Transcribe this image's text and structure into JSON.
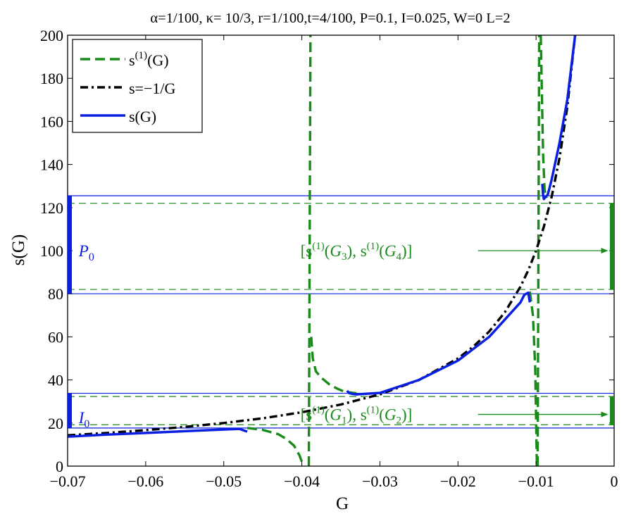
{
  "chart_data": {
    "type": "line",
    "title": "α=1/100, κ= 10/3, r=1/100,t=4/100, P=0.1, I=0.025, W=0 L=2",
    "xlabel": "G",
    "ylabel": "s(G)",
    "xlim": [
      -0.07,
      0
    ],
    "ylim": [
      0,
      200
    ],
    "xticks": [
      -0.07,
      -0.06,
      -0.05,
      -0.04,
      -0.03,
      -0.02,
      -0.01,
      0
    ],
    "xtick_labels": [
      "−0.07",
      "−0.06",
      "−0.05",
      "−0.04",
      "−0.03",
      "−0.02",
      "−0.01",
      "0"
    ],
    "yticks": [
      0,
      20,
      40,
      60,
      80,
      100,
      120,
      140,
      160,
      180,
      200
    ],
    "ytick_labels": [
      "0",
      "20",
      "40",
      "60",
      "80",
      "100",
      "120",
      "140",
      "160",
      "180",
      "200"
    ],
    "grid": false,
    "legend_position": "top-left",
    "legend": [
      {
        "label": "s(1)(G)",
        "label_base": "s",
        "label_sup": "(1)",
        "label_tail": "(G)",
        "color": "#1a8a1a",
        "style": "dashed"
      },
      {
        "label": "s=−1/G",
        "label_base": "s=−1/G",
        "label_sup": "",
        "label_tail": "",
        "color": "#000000",
        "style": "dashdot"
      },
      {
        "label": "s(G)",
        "label_base": "s(G)",
        "label_sup": "",
        "label_tail": "",
        "color": "#0a1fe0",
        "style": "solid"
      }
    ],
    "series": [
      {
        "name": "s(1)(G)",
        "color": "#1a8a1a",
        "style": "dashed",
        "segments": [
          [
            [
              -0.047,
              17.7
            ],
            [
              -0.045,
              16.8
            ],
            [
              -0.043,
              14.8
            ],
            [
              -0.042,
              12.6
            ],
            [
              -0.041,
              9.5
            ],
            [
              -0.0403,
              5.0
            ],
            [
              -0.0398,
              0
            ]
          ],
          [
            [
              -0.0391,
              0
            ],
            [
              -0.0389,
              200
            ]
          ],
          [
            [
              -0.0388,
              60
            ],
            [
              -0.0386,
              50
            ],
            [
              -0.0382,
              44
            ],
            [
              -0.0375,
              41
            ],
            [
              -0.0365,
              38
            ],
            [
              -0.0355,
              36
            ],
            [
              -0.0345,
              34.5
            ],
            [
              -0.033,
              33.8
            ]
          ],
          [
            [
              -0.0108,
              81
            ],
            [
              -0.0104,
              70
            ],
            [
              -0.0101,
              45
            ],
            [
              -0.0099,
              0
            ]
          ],
          [
            [
              -0.0098,
              0
            ],
            [
              -0.0096,
              200
            ]
          ],
          [
            [
              -0.0094,
              200
            ],
            [
              -0.0091,
              145
            ],
            [
              -0.0089,
              128
            ],
            [
              -0.0086,
              124.5
            ]
          ]
        ]
      },
      {
        "name": "s=−1/G",
        "color": "#000000",
        "style": "dashdot",
        "x": [
          -0.07,
          -0.065,
          -0.06,
          -0.055,
          -0.05,
          -0.045,
          -0.04,
          -0.035,
          -0.03,
          -0.025,
          -0.02,
          -0.018,
          -0.016,
          -0.014,
          -0.012,
          -0.011,
          -0.01,
          -0.009,
          -0.008,
          -0.007,
          -0.006,
          -0.005
        ],
        "y": [
          14.3,
          15.4,
          16.7,
          18.2,
          20.0,
          22.2,
          25.0,
          28.6,
          33.3,
          40.0,
          50.0,
          55.6,
          62.5,
          71.4,
          83.3,
          90.9,
          100.0,
          111.1,
          125.0,
          142.9,
          166.7,
          200.0
        ]
      },
      {
        "name": "s(G)",
        "color": "#0a1fe0",
        "style": "solid",
        "segments": [
          [
            [
              -0.07,
              13.7
            ],
            [
              -0.065,
              14.6
            ],
            [
              -0.06,
              15.4
            ],
            [
              -0.055,
              16.2
            ],
            [
              -0.05,
              17.0
            ],
            [
              -0.048,
              17.3
            ],
            [
              -0.047,
              16.0
            ]
          ],
          [
            [
              -0.0342,
              35.0
            ],
            [
              -0.034,
              34.0
            ],
            [
              -0.0335,
              33.5
            ],
            [
              -0.033,
              33.3
            ],
            [
              -0.03,
              34.0
            ],
            [
              -0.025,
              40.0
            ],
            [
              -0.02,
              49.0
            ],
            [
              -0.016,
              60.0
            ],
            [
              -0.014,
              68.0
            ],
            [
              -0.012,
              76.0
            ],
            [
              -0.0115,
              79.5
            ],
            [
              -0.011,
              80.5
            ],
            [
              -0.0108,
              76.0
            ]
          ],
          [
            [
              -0.0092,
              131.0
            ],
            [
              -0.0091,
              126.0
            ],
            [
              -0.009,
              124.0
            ],
            [
              -0.0085,
              126.0
            ],
            [
              -0.008,
              133.0
            ],
            [
              -0.007,
              150.0
            ],
            [
              -0.006,
              170.0
            ],
            [
              -0.005,
              200.0
            ]
          ]
        ]
      }
    ],
    "hlines": [
      {
        "y": 125.5,
        "color": "#0a1fe0",
        "style": "solid"
      },
      {
        "y": 80,
        "color": "#0a1fe0",
        "style": "solid"
      },
      {
        "y": 33.8,
        "color": "#0a1fe0",
        "style": "solid"
      },
      {
        "y": 17.7,
        "color": "#0a1fe0",
        "style": "solid"
      },
      {
        "y": 122,
        "color": "#1a8a1a",
        "style": "dashed"
      },
      {
        "y": 82,
        "color": "#1a8a1a",
        "style": "dashed"
      },
      {
        "y": 32.3,
        "color": "#1a8a1a",
        "style": "dashed"
      },
      {
        "y": 19.2,
        "color": "#1a8a1a",
        "style": "dashed"
      }
    ],
    "interval_bars": [
      {
        "x": -0.07,
        "y0": 80,
        "y1": 125.5,
        "color": "#0a1fe0"
      },
      {
        "x": -0.07,
        "y0": 17.7,
        "y1": 33.8,
        "color": "#0a1fe0"
      },
      {
        "x": 0,
        "y0": 82,
        "y1": 122,
        "color": "#1a8a1a"
      },
      {
        "x": 0,
        "y0": 19.2,
        "y1": 32.3,
        "color": "#1a8a1a"
      }
    ],
    "annotations": [
      {
        "text": "P0",
        "base": "P",
        "sub": "0",
        "color": "#0a1fe0",
        "x": -0.0693,
        "y": 100
      },
      {
        "text": "I0",
        "base": "I",
        "sub": "0",
        "color": "#0a1fe0",
        "x": -0.0693,
        "y": 22.5
      },
      {
        "text": "[s(1)(G3), s(1)(G4)]",
        "color": "#1a8a1a",
        "x": -0.0335,
        "y": 100,
        "g1": "3",
        "g2": "4",
        "arrow_to_x": -0.0005
      },
      {
        "text": "[s(1)(G1), s(1)(G2)]",
        "color": "#1a8a1a",
        "x": -0.0335,
        "y": 24,
        "g1": "1",
        "g2": "2",
        "arrow_to_x": -0.0005
      }
    ]
  }
}
